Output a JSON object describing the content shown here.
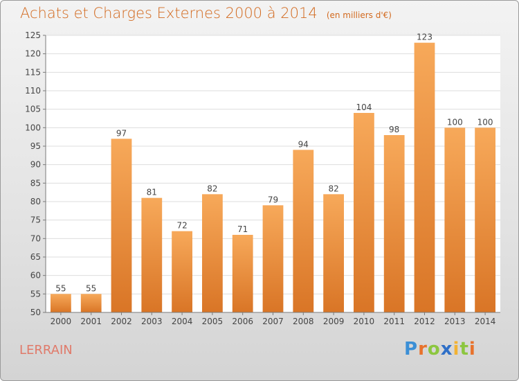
{
  "title": "Achats et Charges Externes 2000 à 2014",
  "unit": "(en milliers d'€)",
  "commune": "LERRAIN",
  "brand": {
    "letters": [
      "P",
      "r",
      "o",
      "x",
      "i",
      "t",
      "i"
    ],
    "colors": [
      "#3b8fd6",
      "#e8722c",
      "#8cc63f",
      "#2f6fc7",
      "#f2b233",
      "#8cc63f",
      "#e8722c"
    ]
  },
  "colors": {
    "title": "#d2691e",
    "bar_top": "#f7a95a",
    "bar_bottom": "#d97526",
    "commune": "#e07a6a"
  },
  "chart_data": {
    "type": "bar",
    "categories": [
      "2000",
      "2001",
      "2002",
      "2003",
      "2004",
      "2005",
      "2006",
      "2007",
      "2008",
      "2009",
      "2010",
      "2011",
      "2012",
      "2013",
      "2014"
    ],
    "values": [
      55,
      55,
      97,
      81,
      72,
      82,
      71,
      79,
      94,
      82,
      104,
      98,
      123,
      100,
      100
    ],
    "ylim": [
      50,
      125
    ],
    "yticks": [
      50,
      55,
      60,
      65,
      70,
      75,
      80,
      85,
      90,
      95,
      100,
      105,
      110,
      115,
      120,
      125
    ],
    "grid": true,
    "title": "Achats et Charges Externes 2000 à 2014",
    "xlabel": "",
    "ylabel": ""
  }
}
